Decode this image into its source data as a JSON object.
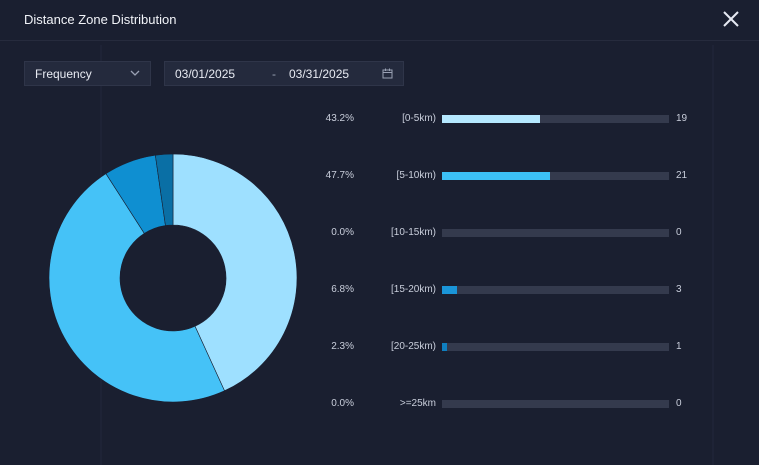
{
  "dialog": {
    "title": "Distance Zone Distribution",
    "close_icon": "close-icon"
  },
  "filters": {
    "metric": "Frequency",
    "start_date": "03/01/2025",
    "separator": "-",
    "end_date": "03/31/2025"
  },
  "colors": {
    "background": "#1a1f30",
    "track": "#343a4d",
    "slice_light": "#9ee0ff",
    "slice_mid": "#45c2f7",
    "slice_dark": "#0f8fd1",
    "slice_darker": "#0a6fa5"
  },
  "chart_data": {
    "type": "pie",
    "style": "donut",
    "categories": [
      "[0-5km)",
      "[5-10km)",
      "[10-15km)",
      "[15-20km)",
      "[20-25km)",
      ">=25km"
    ],
    "percentages": [
      "43.2%",
      "47.7%",
      "0.0%",
      "6.8%",
      "2.3%",
      "0.0%"
    ],
    "values": [
      19,
      21,
      0,
      3,
      1,
      0
    ],
    "max_value": 44
  }
}
